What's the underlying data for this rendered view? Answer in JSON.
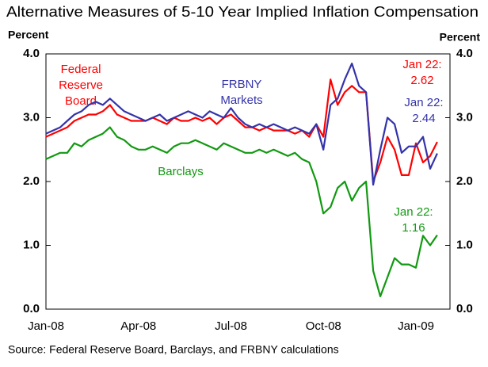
{
  "chart_data": {
    "type": "line",
    "title": "Alternative Measures of 5-10 Year Implied Inflation Compensation",
    "y_label": "Percent",
    "y2_label": "Percent",
    "source": "Source: Federal Reserve Board, Barclays, and FRBNY calculations",
    "categories": [
      "Jan-08",
      null,
      null,
      null,
      null,
      null,
      null,
      null,
      null,
      null,
      null,
      null,
      null,
      "Apr-08",
      null,
      null,
      null,
      null,
      null,
      null,
      null,
      null,
      null,
      null,
      null,
      null,
      "Jul-08",
      null,
      null,
      null,
      null,
      null,
      null,
      null,
      null,
      null,
      null,
      null,
      null,
      "Oct-08",
      null,
      null,
      null,
      null,
      null,
      null,
      null,
      null,
      null,
      null,
      null,
      null,
      "Jan-09",
      null,
      null,
      null
    ],
    "ylim": [
      0,
      4
    ],
    "yticks": [
      {
        "value": 0,
        "label": "0.0"
      },
      {
        "value": 1,
        "label": "1.0"
      },
      {
        "value": 2,
        "label": "2.0"
      },
      {
        "value": 3,
        "label": "3.0"
      },
      {
        "value": 4,
        "label": "4.0"
      }
    ],
    "y2lim": [
      0,
      4
    ],
    "y2ticks": [
      {
        "value": 0,
        "label": "0.0"
      },
      {
        "value": 1,
        "label": "1.0"
      },
      {
        "value": 2,
        "label": "2.0"
      },
      {
        "value": 3,
        "label": "3.0"
      },
      {
        "value": 4,
        "label": "4.0"
      }
    ],
    "grid": false,
    "series": [
      {
        "name": "Federal Reserve Board",
        "color": "#ff0000",
        "label_lines": [
          "Federal",
          "Reserve",
          "Board"
        ],
        "end_label_lines": [
          "Jan 22:",
          "2.62"
        ],
        "values": [
          2.7,
          2.75,
          2.8,
          2.85,
          2.95,
          3.0,
          3.05,
          3.05,
          3.1,
          3.2,
          3.05,
          3.0,
          2.95,
          2.95,
          2.95,
          3.0,
          2.95,
          2.9,
          3.0,
          2.95,
          2.95,
          3.0,
          2.95,
          3.0,
          2.9,
          3.0,
          3.05,
          2.95,
          2.85,
          2.85,
          2.8,
          2.85,
          2.8,
          2.8,
          2.8,
          2.75,
          2.8,
          2.7,
          2.9,
          2.7,
          3.6,
          3.2,
          3.4,
          3.5,
          3.4,
          3.4,
          2.0,
          2.3,
          2.7,
          2.5,
          2.1,
          2.1,
          2.6,
          2.3,
          2.4,
          2.62
        ]
      },
      {
        "name": "FRBNY Markets",
        "color": "#3333aa",
        "label_lines": [
          "FRBNY",
          "Markets"
        ],
        "end_label_lines": [
          "Jan 22:",
          "2.44"
        ],
        "values": [
          2.75,
          2.8,
          2.85,
          2.95,
          3.05,
          3.1,
          3.2,
          3.25,
          3.2,
          3.3,
          3.2,
          3.1,
          3.05,
          3.0,
          2.95,
          3.0,
          3.05,
          2.95,
          3.0,
          3.05,
          3.1,
          3.05,
          3.0,
          3.1,
          3.05,
          3.0,
          3.15,
          3.0,
          2.9,
          2.85,
          2.9,
          2.85,
          2.9,
          2.85,
          2.8,
          2.85,
          2.8,
          2.75,
          2.9,
          2.5,
          3.2,
          3.3,
          3.6,
          3.85,
          3.5,
          3.4,
          1.95,
          2.5,
          3.0,
          2.9,
          2.45,
          2.55,
          2.55,
          2.7,
          2.2,
          2.44
        ]
      },
      {
        "name": "Barclays",
        "color": "#119911",
        "label_lines": [
          "Barclays"
        ],
        "end_label_lines": [
          "Jan 22:",
          "1.16"
        ],
        "values": [
          2.35,
          2.4,
          2.45,
          2.45,
          2.6,
          2.55,
          2.65,
          2.7,
          2.75,
          2.85,
          2.7,
          2.65,
          2.55,
          2.5,
          2.5,
          2.55,
          2.5,
          2.45,
          2.55,
          2.6,
          2.6,
          2.65,
          2.6,
          2.55,
          2.5,
          2.6,
          2.55,
          2.5,
          2.45,
          2.45,
          2.5,
          2.45,
          2.5,
          2.45,
          2.4,
          2.45,
          2.35,
          2.3,
          2.0,
          1.5,
          1.6,
          1.9,
          2.0,
          1.7,
          1.9,
          2.0,
          0.6,
          0.2,
          0.5,
          0.8,
          0.7,
          0.7,
          0.65,
          1.15,
          1.0,
          1.16
        ]
      }
    ]
  }
}
